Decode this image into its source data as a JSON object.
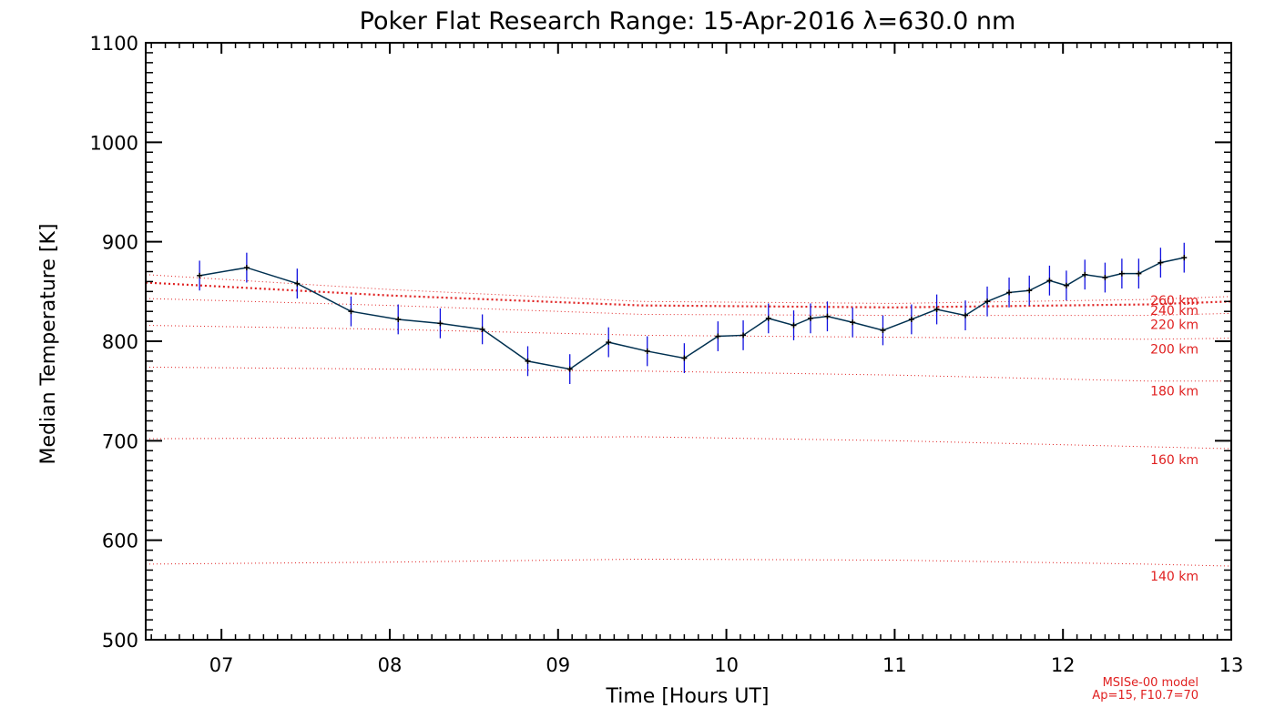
{
  "chart_data": {
    "type": "line",
    "title": "Poker Flat Research Range: 15-Apr-2016 λ=630.0 nm",
    "xlabel": "Time [Hours UT]",
    "ylabel": "Median Temperature [K]",
    "xlim": [
      6.55,
      13.0
    ],
    "ylim": [
      500,
      1100
    ],
    "xticks": [
      7,
      8,
      9,
      10,
      11,
      12,
      13
    ],
    "xtick_labels": [
      "07",
      "08",
      "09",
      "10",
      "11",
      "12",
      "13"
    ],
    "yticks": [
      500,
      600,
      700,
      800,
      900,
      1000,
      1100
    ],
    "ytick_labels": [
      "500",
      "600",
      "700",
      "800",
      "900",
      "1000",
      "1100"
    ],
    "series": [
      {
        "name": "Median Temperature",
        "color": "#003050",
        "error_color": "#1010e0",
        "x": [
          6.87,
          7.15,
          7.45,
          7.77,
          8.05,
          8.3,
          8.55,
          8.82,
          9.07,
          9.3,
          9.53,
          9.75,
          9.95,
          10.1,
          10.25,
          10.4,
          10.5,
          10.6,
          10.75,
          10.93,
          11.1,
          11.25,
          11.42,
          11.55,
          11.68,
          11.8,
          11.92,
          12.02,
          12.13,
          12.25,
          12.35,
          12.45,
          12.58,
          12.72
        ],
        "y": [
          866,
          874,
          858,
          830,
          822,
          818,
          812,
          780,
          772,
          799,
          790,
          783,
          805,
          806,
          823,
          816,
          823,
          825,
          819,
          811,
          822,
          832,
          826,
          840,
          849,
          851,
          861,
          856,
          867,
          864,
          868,
          868,
          879,
          884
        ],
        "err": [
          15,
          15,
          15,
          15,
          15,
          15,
          15,
          15,
          15,
          15,
          15,
          15,
          15,
          15,
          15,
          15,
          15,
          15,
          15,
          15,
          15,
          15,
          15,
          15,
          15,
          15,
          15,
          15,
          15,
          15,
          15,
          15,
          15,
          15
        ]
      }
    ],
    "model_curves": [
      {
        "name": "140 km",
        "label": "140 km",
        "x": [
          6.55,
          8.0,
          9.5,
          11.0,
          12.5,
          13.0
        ],
        "y": [
          576,
          578,
          581,
          580,
          576,
          574
        ],
        "label_y": 564
      },
      {
        "name": "160 km",
        "label": "160 km",
        "x": [
          6.55,
          8.0,
          9.5,
          11.0,
          12.5,
          13.0
        ],
        "y": [
          702,
          703,
          704,
          700,
          694,
          692
        ],
        "label_y": 681
      },
      {
        "name": "180 km",
        "label": "180 km",
        "x": [
          6.55,
          8.0,
          9.5,
          11.0,
          12.5,
          13.0
        ],
        "y": [
          774,
          772,
          770,
          766,
          760,
          760
        ],
        "label_y": 750
      },
      {
        "name": "200 km",
        "label": "200 km",
        "x": [
          6.55,
          8.0,
          9.5,
          11.0,
          12.5,
          13.0
        ],
        "y": [
          816,
          812,
          806,
          804,
          802,
          803
        ],
        "label_y": 792
      },
      {
        "name": "220 km",
        "label": "220 km",
        "x": [
          6.55,
          8.0,
          9.5,
          11.0,
          12.5,
          13.0
        ],
        "y": [
          843,
          836,
          827,
          826,
          826,
          828
        ],
        "label_y": 817
      },
      {
        "name": "240 km",
        "label": "240 km",
        "x": [
          6.55,
          8.0,
          9.5,
          11.0,
          12.5,
          13.0
        ],
        "y": [
          859,
          846,
          836,
          834,
          837,
          840
        ],
        "label_y": 831
      },
      {
        "name": "260 km",
        "label": "260 km",
        "x": [
          6.55,
          8.0,
          9.5,
          11.0,
          12.5,
          13.0
        ],
        "y": [
          867,
          852,
          840,
          838,
          842,
          845
        ],
        "label_y": 841
      }
    ],
    "model_note": [
      "MSISe-00 model",
      "Ap=15, F10.7=70"
    ],
    "model_color": "#e02020"
  }
}
